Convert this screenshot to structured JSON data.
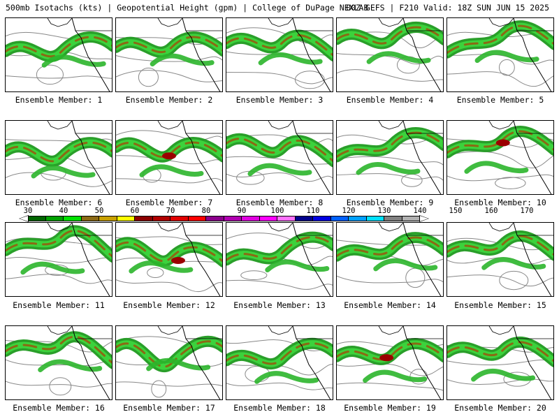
{
  "header": {
    "left_title": "500mb Isotachs (kts) | Geopotential Height (gpm) | College of DuPage NEXLAB",
    "right_title": "00Z GEFS | F210 Valid: 18Z SUN JUN 15 2025"
  },
  "members": [
    {
      "label": "Ensemble Member: 1"
    },
    {
      "label": "Ensemble Member: 2"
    },
    {
      "label": "Ensemble Member: 3"
    },
    {
      "label": "Ensemble Member: 4"
    },
    {
      "label": "Ensemble Member: 5"
    },
    {
      "label": "Ensemble Member: 6"
    },
    {
      "label": "Ensemble Member: 7"
    },
    {
      "label": "Ensemble Member: 8"
    },
    {
      "label": "Ensemble Member: 9"
    },
    {
      "label": "Ensemble Member: 10"
    },
    {
      "label": "Ensemble Member: 11"
    },
    {
      "label": "Ensemble Member: 12"
    },
    {
      "label": "Ensemble Member: 13"
    },
    {
      "label": "Ensemble Member: 14"
    },
    {
      "label": "Ensemble Member: 15"
    },
    {
      "label": "Ensemble Member: 16"
    },
    {
      "label": "Ensemble Member: 17"
    },
    {
      "label": "Ensemble Member: 18"
    },
    {
      "label": "Ensemble Member: 19"
    },
    {
      "label": "Ensemble Member: 20"
    }
  ],
  "colorbar": {
    "tick_labels": [
      "30",
      "40",
      "50",
      "60",
      "70",
      "80",
      "90",
      "100",
      "110",
      "120",
      "130",
      "140",
      "150",
      "160",
      "170"
    ],
    "colors": [
      "#006400",
      "#00a000",
      "#00e000",
      "#8b6914",
      "#c8a000",
      "#ffff00",
      "#8b0000",
      "#b00000",
      "#e00000",
      "#ff0000",
      "#8b008b",
      "#b000b0",
      "#e000e0",
      "#ff00ff",
      "#ff70ff",
      "#00008b",
      "#0000e0",
      "#0060ff",
      "#00a0ff",
      "#00e0ff",
      "#808080",
      "#b0b0b0"
    ]
  }
}
